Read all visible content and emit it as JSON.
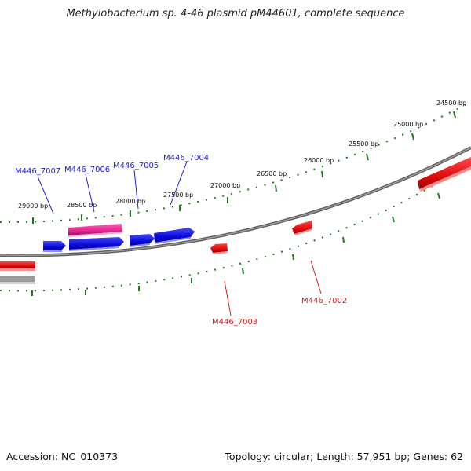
{
  "title": "Methylobacterium sp. 4-46 plasmid pM44601, complete sequence",
  "footer": {
    "accession": "Accession: NC_010373",
    "summary": "Topology: circular; Length: 57,951 bp; Genes: 62"
  },
  "ticks": [
    {
      "label": "29000 bp"
    },
    {
      "label": "28500 bp"
    },
    {
      "label": "28000 bp"
    },
    {
      "label": "27500 bp"
    },
    {
      "label": "27000 bp"
    },
    {
      "label": "26500 bp"
    },
    {
      "label": "26000 bp"
    },
    {
      "label": "25500 bp"
    },
    {
      "label": "25000 bp"
    },
    {
      "label": "24500 bp"
    }
  ],
  "genes_forward": [
    {
      "label": "M446_7007"
    },
    {
      "label": "M446_7006"
    },
    {
      "label": "M446_7005"
    },
    {
      "label": "M446_7004"
    }
  ],
  "genes_reverse": [
    {
      "label": "M446_7003"
    },
    {
      "label": "M446_7002"
    }
  ],
  "colors": {
    "forward_gene": "#1010e6",
    "reverse_gene": "#e61010",
    "rna_gene": "#e0208a",
    "tick": "#1e7a1e",
    "backbone": "#808080"
  }
}
